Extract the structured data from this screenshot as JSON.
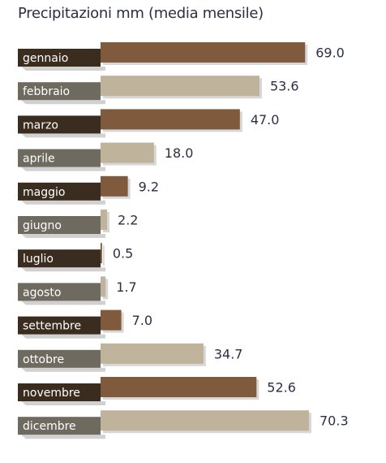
{
  "chart_data": {
    "type": "bar",
    "orientation": "horizontal",
    "title": "Precipitazioni mm (media mensile)",
    "categories": [
      "gennaio",
      "febbraio",
      "marzo",
      "aprile",
      "maggio",
      "giugno",
      "luglio",
      "agosto",
      "settembre",
      "ottobre",
      "novembre",
      "dicembre"
    ],
    "values": [
      69.0,
      53.6,
      47.0,
      18.0,
      9.2,
      2.2,
      0.5,
      1.7,
      7.0,
      34.7,
      52.6,
      70.3
    ],
    "value_labels": [
      "69.0",
      "53.6",
      "47.0",
      "18.0",
      "9.2",
      "2.2",
      "0.5",
      "1.7",
      "7.0",
      "34.7",
      "52.6",
      "70.3"
    ],
    "xlim": [
      0,
      70.3
    ],
    "grid": false,
    "legend": "none",
    "colors": {
      "bar_odd": "#7f5a3c",
      "bar_even": "#bfb39c",
      "label_odd": "#3b2c20",
      "label_even": "#6f6a60",
      "shadow": "#9a9a9a",
      "text": "#2a2f45"
    }
  }
}
